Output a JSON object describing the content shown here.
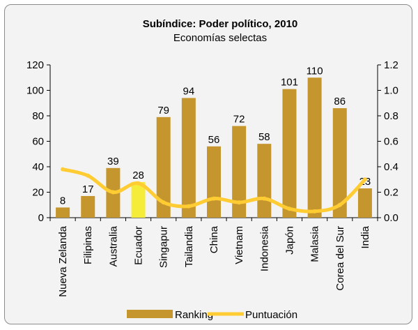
{
  "chart_data": {
    "type": "bar",
    "title": "Subíndice: Poder político, 2010",
    "subtitle": "Economías selectas",
    "categories": [
      "Nueva Zelanda",
      "Filipinas",
      "Australia",
      "Ecuador",
      "Singapur",
      "Tailandia",
      "China",
      "Vietnam",
      "Indonesia",
      "Japón",
      "Malasia",
      "Corea del Sur",
      "India"
    ],
    "series": [
      {
        "name": "Ranking",
        "type": "bar",
        "axis": "left",
        "values": [
          8,
          17,
          39,
          28,
          79,
          94,
          56,
          72,
          58,
          101,
          110,
          86,
          23
        ],
        "color": "#c5962e",
        "highlight_index": 3,
        "highlight_color": "#f5ec3a"
      },
      {
        "name": "Puntuación",
        "type": "line",
        "axis": "right",
        "values": [
          0.38,
          0.33,
          0.2,
          0.27,
          0.12,
          0.09,
          0.15,
          0.12,
          0.15,
          0.07,
          0.05,
          0.1,
          0.3
        ],
        "color": "#ffcc33"
      }
    ],
    "y_left": {
      "min": 0,
      "max": 120,
      "ticks": [
        "0",
        "20",
        "40",
        "60",
        "80",
        "100",
        "120"
      ]
    },
    "y_right": {
      "min": 0,
      "max": 1.2,
      "ticks": [
        "0.0",
        "0.2",
        "0.4",
        "0.6",
        "0.8",
        "1.0",
        "1.2"
      ]
    },
    "legend_position": "bottom",
    "grid": false
  }
}
